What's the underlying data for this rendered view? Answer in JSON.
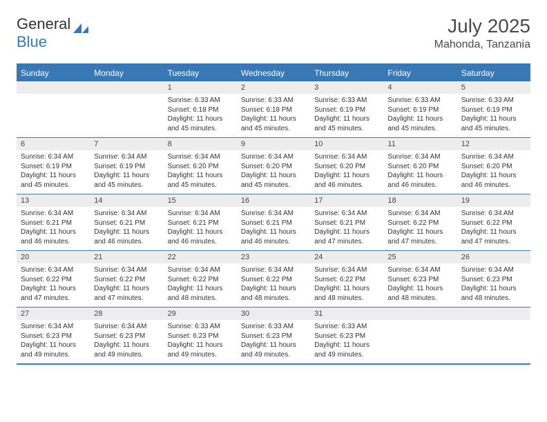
{
  "logo": {
    "general": "General",
    "blue": "Blue"
  },
  "title": {
    "month": "July 2025",
    "location": "Mahonda, Tanzania"
  },
  "colors": {
    "accent": "#3a78b5",
    "header_bg": "#3a78b5",
    "daynum_bg": "#ededed",
    "text": "#333333"
  },
  "day_headers": [
    "Sunday",
    "Monday",
    "Tuesday",
    "Wednesday",
    "Thursday",
    "Friday",
    "Saturday"
  ],
  "weeks": [
    [
      {
        "n": "",
        "sr": "",
        "ss": "",
        "dl": "",
        "empty": true
      },
      {
        "n": "",
        "sr": "",
        "ss": "",
        "dl": "",
        "empty": true
      },
      {
        "n": "1",
        "sr": "Sunrise: 6:33 AM",
        "ss": "Sunset: 6:18 PM",
        "dl": "Daylight: 11 hours and 45 minutes."
      },
      {
        "n": "2",
        "sr": "Sunrise: 6:33 AM",
        "ss": "Sunset: 6:18 PM",
        "dl": "Daylight: 11 hours and 45 minutes."
      },
      {
        "n": "3",
        "sr": "Sunrise: 6:33 AM",
        "ss": "Sunset: 6:19 PM",
        "dl": "Daylight: 11 hours and 45 minutes."
      },
      {
        "n": "4",
        "sr": "Sunrise: 6:33 AM",
        "ss": "Sunset: 6:19 PM",
        "dl": "Daylight: 11 hours and 45 minutes."
      },
      {
        "n": "5",
        "sr": "Sunrise: 6:33 AM",
        "ss": "Sunset: 6:19 PM",
        "dl": "Daylight: 11 hours and 45 minutes."
      }
    ],
    [
      {
        "n": "6",
        "sr": "Sunrise: 6:34 AM",
        "ss": "Sunset: 6:19 PM",
        "dl": "Daylight: 11 hours and 45 minutes."
      },
      {
        "n": "7",
        "sr": "Sunrise: 6:34 AM",
        "ss": "Sunset: 6:19 PM",
        "dl": "Daylight: 11 hours and 45 minutes."
      },
      {
        "n": "8",
        "sr": "Sunrise: 6:34 AM",
        "ss": "Sunset: 6:20 PM",
        "dl": "Daylight: 11 hours and 45 minutes."
      },
      {
        "n": "9",
        "sr": "Sunrise: 6:34 AM",
        "ss": "Sunset: 6:20 PM",
        "dl": "Daylight: 11 hours and 45 minutes."
      },
      {
        "n": "10",
        "sr": "Sunrise: 6:34 AM",
        "ss": "Sunset: 6:20 PM",
        "dl": "Daylight: 11 hours and 46 minutes."
      },
      {
        "n": "11",
        "sr": "Sunrise: 6:34 AM",
        "ss": "Sunset: 6:20 PM",
        "dl": "Daylight: 11 hours and 46 minutes."
      },
      {
        "n": "12",
        "sr": "Sunrise: 6:34 AM",
        "ss": "Sunset: 6:20 PM",
        "dl": "Daylight: 11 hours and 46 minutes."
      }
    ],
    [
      {
        "n": "13",
        "sr": "Sunrise: 6:34 AM",
        "ss": "Sunset: 6:21 PM",
        "dl": "Daylight: 11 hours and 46 minutes."
      },
      {
        "n": "14",
        "sr": "Sunrise: 6:34 AM",
        "ss": "Sunset: 6:21 PM",
        "dl": "Daylight: 11 hours and 46 minutes."
      },
      {
        "n": "15",
        "sr": "Sunrise: 6:34 AM",
        "ss": "Sunset: 6:21 PM",
        "dl": "Daylight: 11 hours and 46 minutes."
      },
      {
        "n": "16",
        "sr": "Sunrise: 6:34 AM",
        "ss": "Sunset: 6:21 PM",
        "dl": "Daylight: 11 hours and 46 minutes."
      },
      {
        "n": "17",
        "sr": "Sunrise: 6:34 AM",
        "ss": "Sunset: 6:21 PM",
        "dl": "Daylight: 11 hours and 47 minutes."
      },
      {
        "n": "18",
        "sr": "Sunrise: 6:34 AM",
        "ss": "Sunset: 6:22 PM",
        "dl": "Daylight: 11 hours and 47 minutes."
      },
      {
        "n": "19",
        "sr": "Sunrise: 6:34 AM",
        "ss": "Sunset: 6:22 PM",
        "dl": "Daylight: 11 hours and 47 minutes."
      }
    ],
    [
      {
        "n": "20",
        "sr": "Sunrise: 6:34 AM",
        "ss": "Sunset: 6:22 PM",
        "dl": "Daylight: 11 hours and 47 minutes."
      },
      {
        "n": "21",
        "sr": "Sunrise: 6:34 AM",
        "ss": "Sunset: 6:22 PM",
        "dl": "Daylight: 11 hours and 47 minutes."
      },
      {
        "n": "22",
        "sr": "Sunrise: 6:34 AM",
        "ss": "Sunset: 6:22 PM",
        "dl": "Daylight: 11 hours and 48 minutes."
      },
      {
        "n": "23",
        "sr": "Sunrise: 6:34 AM",
        "ss": "Sunset: 6:22 PM",
        "dl": "Daylight: 11 hours and 48 minutes."
      },
      {
        "n": "24",
        "sr": "Sunrise: 6:34 AM",
        "ss": "Sunset: 6:22 PM",
        "dl": "Daylight: 11 hours and 48 minutes."
      },
      {
        "n": "25",
        "sr": "Sunrise: 6:34 AM",
        "ss": "Sunset: 6:23 PM",
        "dl": "Daylight: 11 hours and 48 minutes."
      },
      {
        "n": "26",
        "sr": "Sunrise: 6:34 AM",
        "ss": "Sunset: 6:23 PM",
        "dl": "Daylight: 11 hours and 48 minutes."
      }
    ],
    [
      {
        "n": "27",
        "sr": "Sunrise: 6:34 AM",
        "ss": "Sunset: 6:23 PM",
        "dl": "Daylight: 11 hours and 49 minutes."
      },
      {
        "n": "28",
        "sr": "Sunrise: 6:34 AM",
        "ss": "Sunset: 6:23 PM",
        "dl": "Daylight: 11 hours and 49 minutes."
      },
      {
        "n": "29",
        "sr": "Sunrise: 6:33 AM",
        "ss": "Sunset: 6:23 PM",
        "dl": "Daylight: 11 hours and 49 minutes."
      },
      {
        "n": "30",
        "sr": "Sunrise: 6:33 AM",
        "ss": "Sunset: 6:23 PM",
        "dl": "Daylight: 11 hours and 49 minutes."
      },
      {
        "n": "31",
        "sr": "Sunrise: 6:33 AM",
        "ss": "Sunset: 6:23 PM",
        "dl": "Daylight: 11 hours and 49 minutes."
      },
      {
        "n": "",
        "sr": "",
        "ss": "",
        "dl": "",
        "empty": true
      },
      {
        "n": "",
        "sr": "",
        "ss": "",
        "dl": "",
        "empty": true
      }
    ]
  ]
}
